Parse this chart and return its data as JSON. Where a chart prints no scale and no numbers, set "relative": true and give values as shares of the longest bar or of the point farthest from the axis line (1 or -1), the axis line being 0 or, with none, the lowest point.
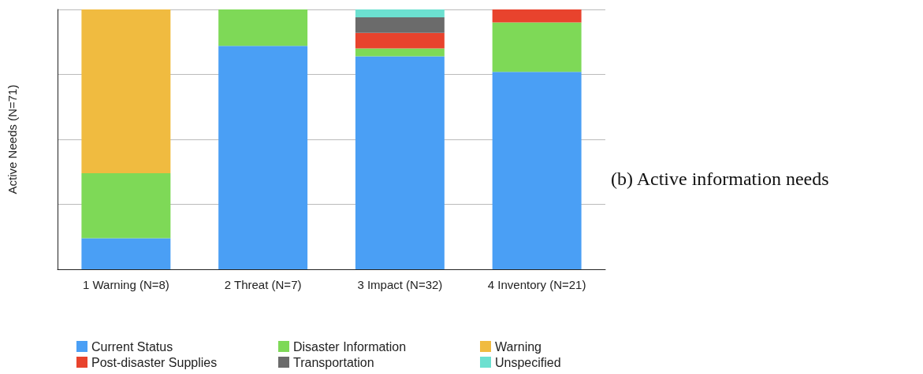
{
  "chart_data": {
    "type": "bar",
    "stacked": true,
    "relative": true,
    "ylabel": "Active Needs (N=71)",
    "categories": [
      "1 Warning (N=8)",
      "2 Threat (N=7)",
      "3 Impact (N=32)",
      "4 Inventory (N=21)"
    ],
    "series": [
      {
        "name": "Current Status",
        "color": "#4a9ff5",
        "values": [
          0.12,
          0.86,
          0.82,
          0.76
        ]
      },
      {
        "name": "Disaster Information",
        "color": "#7ed957",
        "values": [
          0.25,
          0.14,
          0.03,
          0.19
        ]
      },
      {
        "name": "Warning",
        "color": "#f0bb40",
        "values": [
          0.63,
          null,
          null,
          null
        ]
      },
      {
        "name": "Post-disaster Supplies",
        "color": "#e8432d",
        "values": [
          null,
          null,
          0.06,
          0.05
        ]
      },
      {
        "name": "Transportation",
        "color": "#6b6b6b",
        "values": [
          null,
          null,
          0.06,
          null
        ]
      },
      {
        "name": "Unspecified",
        "color": "#6ce0d0",
        "values": [
          null,
          null,
          0.03,
          null
        ]
      }
    ],
    "grid": "y",
    "legend": "bottom",
    "annotations": [
      "(b) Active information needs"
    ]
  }
}
